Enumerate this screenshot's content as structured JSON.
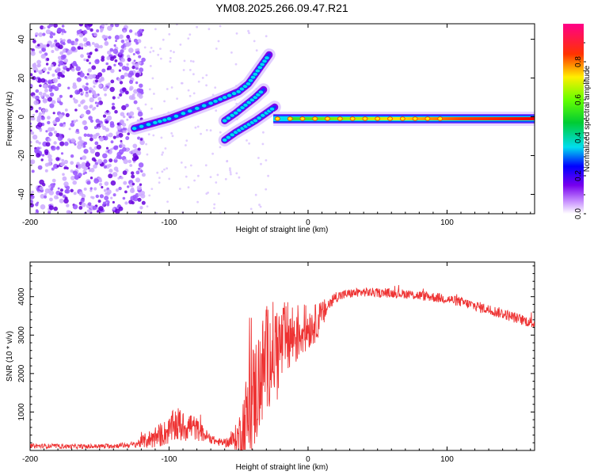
{
  "title": "YM08.2025.266.09.47.R21",
  "chart_data": [
    {
      "type": "heatmap",
      "name": "spectrogram",
      "title": "YM08.2025.266.09.47.R21",
      "xlabel": "Height of straight line (km)",
      "ylabel": "Frequency (Hz)",
      "xlim": [
        -200,
        163
      ],
      "ylim": [
        -50,
        48
      ],
      "xticks": [
        -200,
        -100,
        0,
        100
      ],
      "xtick_labels": [
        "-200",
        "-100",
        "0",
        "100"
      ],
      "yticks": [
        -40,
        -20,
        0,
        20,
        40
      ],
      "ytick_labels": [
        "-40",
        "-20",
        "0",
        "20",
        "40"
      ],
      "noise_region_x": [
        -200,
        -118
      ],
      "ridges": [
        {
          "name": "main-band",
          "points": [
            [
              -125,
              -6
            ],
            [
              -110,
              -3
            ],
            [
              -100,
              -1
            ],
            [
              -85,
              3
            ],
            [
              -70,
              7
            ],
            [
              -60,
              10
            ],
            [
              -50,
              13
            ],
            [
              -43,
              17
            ],
            [
              -38,
              22
            ],
            [
              -33,
              27
            ],
            [
              -28,
              32
            ]
          ],
          "amplitude": 0.35
        },
        {
          "name": "upper-branch",
          "points": [
            [
              -60,
              -2
            ],
            [
              -52,
              2
            ],
            [
              -45,
              6
            ],
            [
              -38,
              10
            ],
            [
              -32,
              14
            ]
          ],
          "amplitude": 0.3
        },
        {
          "name": "lower-branch",
          "points": [
            [
              -60,
              -12
            ],
            [
              -52,
              -8
            ],
            [
              -45,
              -5
            ],
            [
              -38,
              -2
            ],
            [
              -30,
              2
            ],
            [
              -24,
              5
            ]
          ],
          "amplitude": 0.3
        },
        {
          "name": "carrier",
          "points": [
            [
              -25,
              0
            ],
            [
              0,
              -1
            ],
            [
              50,
              -1
            ],
            [
              100,
              -1
            ],
            [
              163,
              -1
            ]
          ],
          "amplitude": 0.9
        }
      ],
      "colorbar": {
        "label": "Normalized spectral amplitude",
        "range": [
          0,
          1
        ],
        "ticks": [
          0.0,
          0.2,
          0.4,
          0.6,
          0.8
        ],
        "tick_labels": [
          "0.0",
          "0.2",
          "0.4",
          "0.6",
          "0.8"
        ]
      }
    },
    {
      "type": "line",
      "name": "snr",
      "xlabel": "Height of straight line (km)",
      "ylabel": "SNR (10 * v/v)",
      "xlim": [
        -200,
        163
      ],
      "ylim": [
        0,
        4900
      ],
      "xticks": [
        -200,
        -100,
        0,
        100
      ],
      "xtick_labels": [
        "-200",
        "-100",
        "0",
        "100"
      ],
      "yticks": [
        1000,
        2000,
        3000,
        4000
      ],
      "ytick_labels": [
        "1000",
        "2000",
        "3000",
        "4000"
      ],
      "color": "#ee3333",
      "series": [
        {
          "name": "SNR",
          "x": [
            -200,
            -180,
            -160,
            -140,
            -125,
            -110,
            -100,
            -95,
            -90,
            -85,
            -80,
            -75,
            -70,
            -65,
            -60,
            -55,
            -50,
            -45,
            -40,
            -35,
            -30,
            -25,
            -20,
            -15,
            -10,
            -5,
            0,
            5,
            10,
            15,
            20,
            30,
            40,
            50,
            60,
            70,
            80,
            90,
            100,
            110,
            120,
            130,
            140,
            150,
            163
          ],
          "y": [
            120,
            110,
            100,
            120,
            150,
            350,
            500,
            700,
            600,
            650,
            550,
            420,
            300,
            220,
            200,
            250,
            350,
            700,
            1300,
            1800,
            2400,
            2600,
            2700,
            2900,
            3000,
            3100,
            3200,
            3300,
            3500,
            3800,
            4000,
            4080,
            4120,
            4100,
            4090,
            4070,
            4030,
            3990,
            3940,
            3860,
            3760,
            3660,
            3560,
            3440,
            3300
          ],
          "noise": [
            60,
            60,
            60,
            60,
            80,
            300,
            350,
            500,
            400,
            400,
            300,
            200,
            120,
            100,
            100,
            200,
            500,
            1200,
            1500,
            1500,
            1400,
            1300,
            1100,
            1000,
            900,
            700,
            600,
            500,
            400,
            200,
            150,
            120,
            120,
            120,
            120,
            120,
            130,
            130,
            130,
            130,
            140,
            140,
            140,
            140,
            140
          ]
        }
      ]
    }
  ]
}
